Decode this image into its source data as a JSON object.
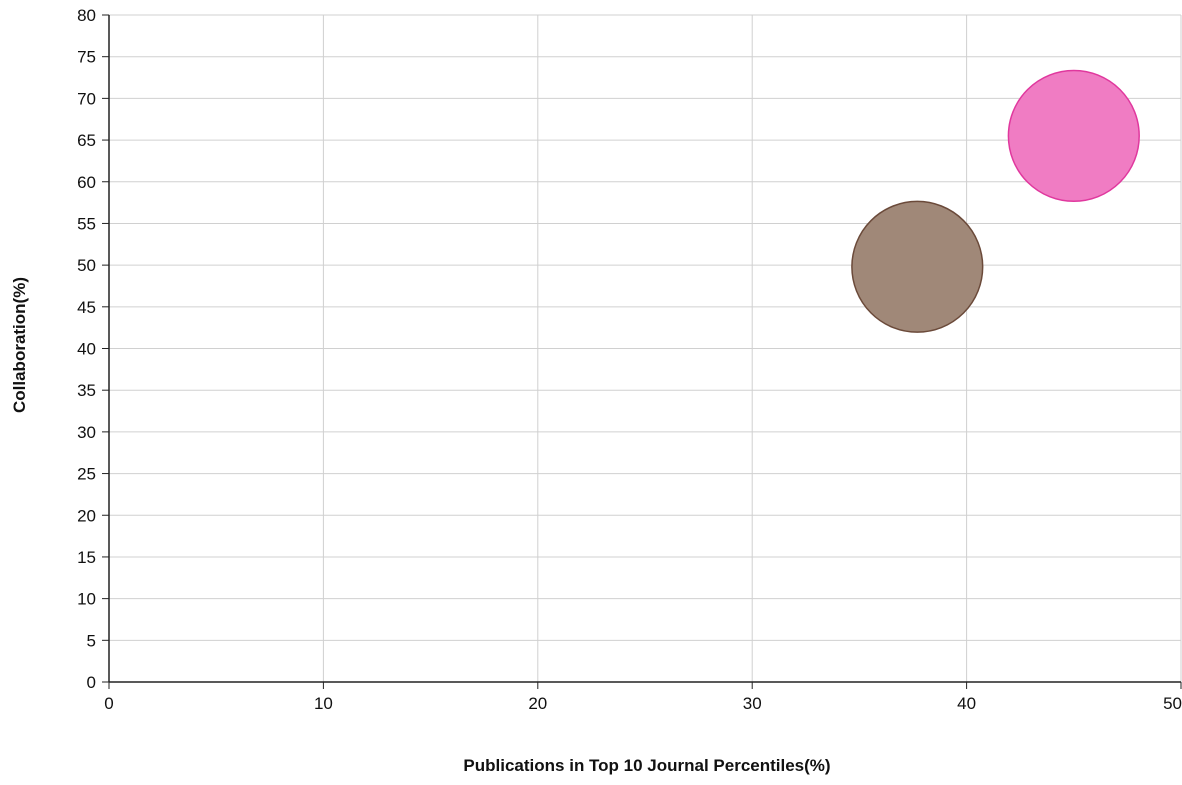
{
  "chart_data": {
    "type": "scatter",
    "title": "",
    "xlabel": "Publications in Top 10 Journal Percentiles(%)",
    "ylabel": "Collaboration(%)",
    "xlim": [
      0,
      50
    ],
    "ylim": [
      0,
      80
    ],
    "xticks": [
      0,
      10,
      20,
      30,
      40,
      50
    ],
    "yticks": [
      0,
      5,
      10,
      15,
      20,
      25,
      30,
      35,
      40,
      45,
      50,
      55,
      60,
      65,
      70,
      75,
      80
    ],
    "grid": true,
    "legend": "none",
    "series": [
      {
        "points": [
          {
            "x": 37.7,
            "y": 49.8
          }
        ],
        "color": "#a08878",
        "stroke": "#6b4a3a"
      },
      {
        "points": [
          {
            "x": 45.0,
            "y": 65.5
          }
        ],
        "color": "#f07cc3",
        "stroke": "#e0389e"
      }
    ]
  }
}
